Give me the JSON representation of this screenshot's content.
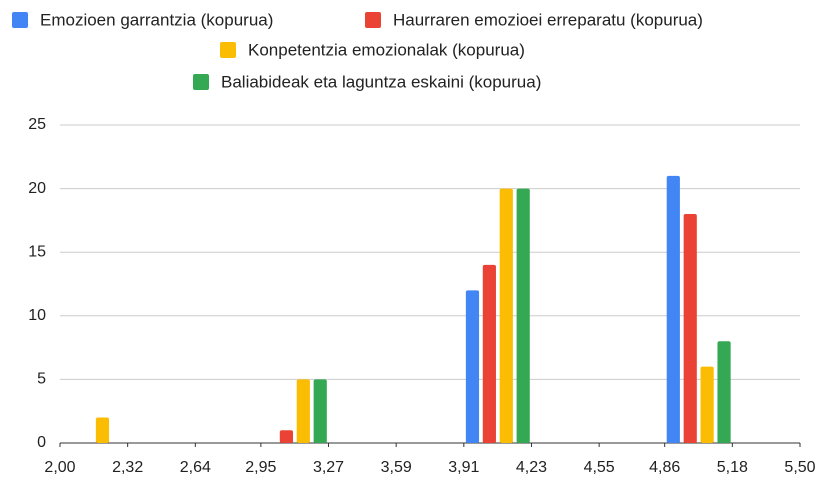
{
  "chart_data": {
    "type": "histogram",
    "bins": [
      2.0,
      2.32,
      2.64,
      2.95,
      3.27,
      3.59,
      3.91,
      4.23,
      4.55,
      4.86,
      5.18,
      5.5
    ],
    "series": [
      {
        "name": "Emozioen garrantzia (kopurua)",
        "color": "#4285f4",
        "values": [
          0,
          0,
          0,
          0,
          0,
          0,
          12,
          0,
          0,
          21,
          0
        ]
      },
      {
        "name": "Haurraren emozioei erreparatu (kopurua)",
        "color": "#ea4335",
        "values": [
          0,
          0,
          0,
          1,
          0,
          0,
          14,
          0,
          0,
          18,
          0
        ]
      },
      {
        "name": "Konpetentzia emozionalak (kopurua)",
        "color": "#fbbc04",
        "values": [
          2,
          0,
          0,
          5,
          0,
          0,
          20,
          0,
          0,
          6,
          0
        ]
      },
      {
        "name": "Baliabideak eta laguntza eskaini (kopurua)",
        "color": "#34a853",
        "values": [
          0,
          0,
          0,
          5,
          0,
          0,
          20,
          0,
          0,
          8,
          0
        ]
      }
    ],
    "xlim": [
      2.0,
      5.5
    ],
    "xticks": [
      {
        "value": 2.0,
        "label": "2,00"
      },
      {
        "value": 2.32,
        "label": "2,32"
      },
      {
        "value": 2.64,
        "label": "2,64"
      },
      {
        "value": 2.95,
        "label": "2,95"
      },
      {
        "value": 3.27,
        "label": "3,27"
      },
      {
        "value": 3.59,
        "label": "3,59"
      },
      {
        "value": 3.91,
        "label": "3,91"
      },
      {
        "value": 4.23,
        "label": "4,23"
      },
      {
        "value": 4.55,
        "label": "4,55"
      },
      {
        "value": 4.86,
        "label": "4,86"
      },
      {
        "value": 5.18,
        "label": "5,18"
      },
      {
        "value": 5.5,
        "label": "5,50"
      }
    ],
    "ylim": [
      0,
      25
    ],
    "yticks": [
      0,
      5,
      10,
      15,
      20,
      25
    ],
    "grid": true,
    "legend": "top"
  }
}
